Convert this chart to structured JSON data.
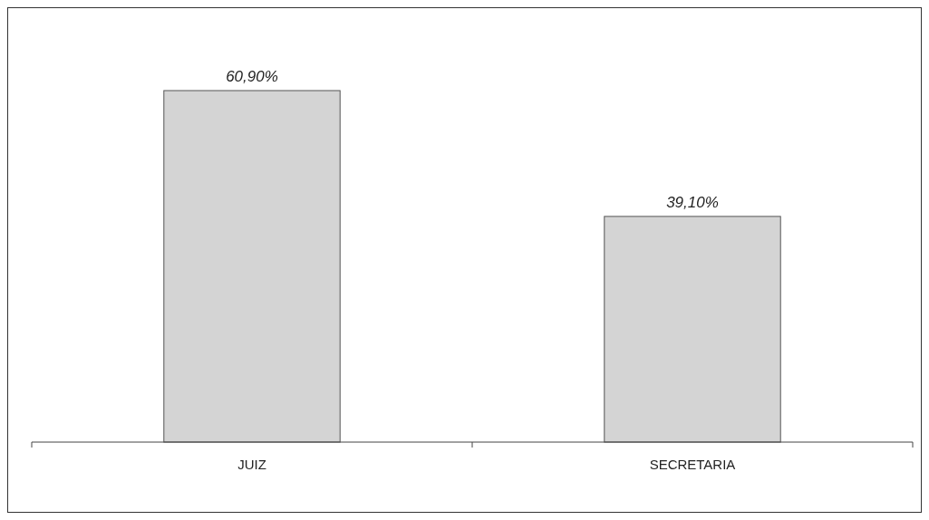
{
  "chart_data": {
    "type": "bar",
    "categories": [
      "JUIZ",
      "SECRETARIA"
    ],
    "values": [
      60.9,
      39.1
    ],
    "color": "#d4d4d4",
    "value_labels": [
      "60,90%",
      "39,10%"
    ]
  }
}
